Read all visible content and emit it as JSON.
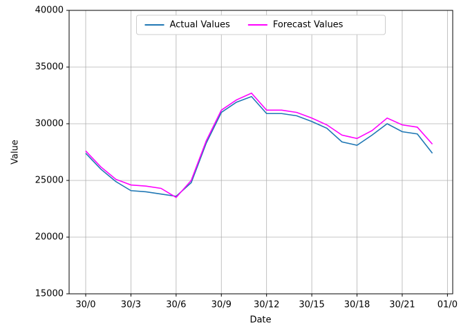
{
  "chart_data": {
    "type": "line",
    "x_label": "Date",
    "y_label": "Value",
    "x": [
      0,
      1,
      2,
      3,
      4,
      5,
      6,
      7,
      8,
      9,
      10,
      11,
      12,
      13,
      14,
      15,
      16,
      17,
      18,
      19,
      20,
      21,
      22,
      23
    ],
    "series": [
      {
        "name": "Actual Values",
        "color": "#1f77b4",
        "values": [
          27400,
          26000,
          24900,
          24100,
          24000,
          23800,
          23600,
          24800,
          28300,
          31000,
          31900,
          32400,
          30900,
          30900,
          30700,
          30200,
          29600,
          28400,
          28100,
          29000,
          30000,
          29300,
          29100,
          27400
        ]
      },
      {
        "name": "Forecast Values",
        "color": "#ff00ff",
        "values": [
          27600,
          26200,
          25100,
          24600,
          24500,
          24300,
          23500,
          25000,
          28500,
          31200,
          32100,
          32700,
          31200,
          31200,
          31000,
          30500,
          29900,
          29000,
          28700,
          29400,
          30500,
          29900,
          29700,
          28200
        ]
      }
    ],
    "xlim": [
      -1.1,
      24.35
    ],
    "ylim": [
      15000,
      40000
    ],
    "xticks": [
      {
        "value": 0,
        "label": "30/0"
      },
      {
        "value": 3,
        "label": "30/3"
      },
      {
        "value": 6,
        "label": "30/6"
      },
      {
        "value": 9,
        "label": "30/9"
      },
      {
        "value": 12,
        "label": "30/12"
      },
      {
        "value": 15,
        "label": "30/15"
      },
      {
        "value": 18,
        "label": "30/18"
      },
      {
        "value": 21,
        "label": "30/21"
      },
      {
        "value": 24,
        "label": "01/0"
      }
    ],
    "yticks": [
      15000,
      20000,
      25000,
      30000,
      35000,
      40000
    ],
    "grid": true,
    "legend": "upper center"
  }
}
